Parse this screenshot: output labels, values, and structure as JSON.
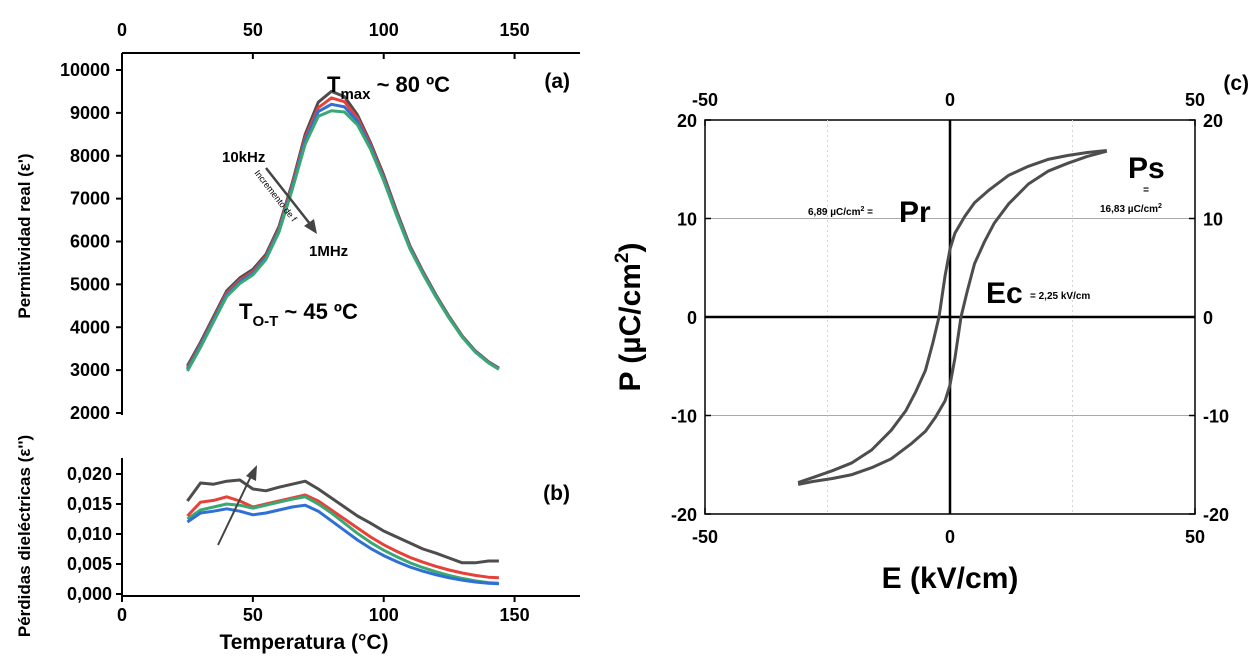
{
  "colors": {
    "dark": "#4d4d4d",
    "red": "#e8413a",
    "blue": "#2f6fd6",
    "green": "#3aa872",
    "gray": "#7a7a7a"
  },
  "chart_data": [
    {
      "id": "a",
      "type": "line",
      "panel_label": "(a)",
      "ylabel": "Permitividad real (ε')",
      "xlim": [
        0,
        175
      ],
      "ylim": [
        2000,
        10000
      ],
      "xticks": [
        "0",
        "50",
        "100",
        "150"
      ],
      "xtick_values": [
        0,
        50,
        100,
        150
      ],
      "yticks": [
        "2000",
        "3000",
        "4000",
        "5000",
        "6000",
        "7000",
        "8000",
        "9000",
        "10000"
      ],
      "ytick_values": [
        2000,
        3000,
        4000,
        5000,
        6000,
        7000,
        8000,
        9000,
        10000
      ],
      "x": [
        25,
        30,
        35,
        40,
        45,
        50,
        55,
        60,
        65,
        70,
        75,
        80,
        85,
        90,
        95,
        100,
        105,
        110,
        115,
        120,
        125,
        130,
        135,
        140,
        144
      ],
      "series": [
        {
          "color": "dark",
          "values": [
            3100,
            3650,
            4250,
            4850,
            5150,
            5350,
            5700,
            6350,
            7350,
            8500,
            9250,
            9500,
            9380,
            8950,
            8300,
            7550,
            6700,
            5900,
            5300,
            4750,
            4250,
            3800,
            3450,
            3200,
            3050
          ]
        },
        {
          "color": "red",
          "values": [
            3050,
            3600,
            4200,
            4800,
            5100,
            5300,
            5650,
            6300,
            7300,
            8420,
            9120,
            9350,
            9260,
            8880,
            8250,
            7500,
            6660,
            5870,
            5280,
            4730,
            4230,
            3790,
            3440,
            3190,
            3040
          ]
        },
        {
          "color": "blue",
          "values": [
            3020,
            3570,
            4170,
            4760,
            5060,
            5260,
            5620,
            6260,
            7250,
            8350,
            9030,
            9200,
            9140,
            8800,
            8200,
            7460,
            6630,
            5850,
            5260,
            4720,
            4220,
            3780,
            3430,
            3180,
            3030
          ]
        },
        {
          "color": "green",
          "values": [
            2980,
            3530,
            4130,
            4720,
            5020,
            5220,
            5580,
            6220,
            7200,
            8270,
            8920,
            9050,
            9020,
            8720,
            8150,
            7420,
            6600,
            5830,
            5240,
            4700,
            4210,
            3770,
            3420,
            3170,
            3020
          ]
        }
      ],
      "annotations": {
        "tmax_prefix": "T",
        "tmax_sub": "max",
        "tmax_suffix": " ~ 80 ºC",
        "tot_prefix": "T",
        "tot_sub": "O-T",
        "tot_suffix": " ~ 45 ºC",
        "freq_low": "10kHz",
        "freq_high": "1MHz",
        "arrow_text": "Incremento de f"
      }
    },
    {
      "id": "b",
      "type": "line",
      "panel_label": "(b)",
      "xlabel": "Temperatura (°C)",
      "ylabel": "Pérdidas dieléctricas (ε'')",
      "xlim": [
        0,
        175
      ],
      "ylim": [
        0,
        0.023
      ],
      "xticks": [
        "0",
        "50",
        "100",
        "150"
      ],
      "xtick_values": [
        0,
        50,
        100,
        150
      ],
      "yticks": [
        "0,000",
        "0,005",
        "0,010",
        "0,015",
        "0,020"
      ],
      "ytick_values": [
        0,
        0.005,
        0.01,
        0.015,
        0.02
      ],
      "x": [
        25,
        30,
        35,
        40,
        45,
        50,
        55,
        60,
        65,
        70,
        75,
        80,
        85,
        90,
        95,
        100,
        105,
        110,
        115,
        120,
        125,
        130,
        135,
        140,
        144
      ],
      "series": [
        {
          "color": "dark",
          "values": [
            0.0155,
            0.0185,
            0.0183,
            0.0188,
            0.019,
            0.0175,
            0.0172,
            0.0178,
            0.0183,
            0.0188,
            0.0175,
            0.016,
            0.0145,
            0.013,
            0.0118,
            0.0105,
            0.0095,
            0.0085,
            0.0075,
            0.0068,
            0.006,
            0.0052,
            0.0052,
            0.0055,
            0.0055
          ]
        },
        {
          "color": "red",
          "values": [
            0.013,
            0.0153,
            0.0156,
            0.0162,
            0.0155,
            0.0145,
            0.015,
            0.0155,
            0.016,
            0.0165,
            0.0155,
            0.014,
            0.0125,
            0.011,
            0.0095,
            0.0082,
            0.0071,
            0.0061,
            0.0053,
            0.0046,
            0.004,
            0.0035,
            0.0031,
            0.0028,
            0.0027
          ]
        },
        {
          "color": "green",
          "values": [
            0.0125,
            0.014,
            0.0145,
            0.015,
            0.0148,
            0.0143,
            0.0148,
            0.0153,
            0.0158,
            0.0162,
            0.015,
            0.0135,
            0.0118,
            0.0101,
            0.0086,
            0.0073,
            0.0062,
            0.0052,
            0.0044,
            0.0037,
            0.0031,
            0.0026,
            0.0022,
            0.0019,
            0.0018
          ]
        },
        {
          "color": "blue",
          "values": [
            0.012,
            0.0135,
            0.0138,
            0.0142,
            0.0138,
            0.0132,
            0.0135,
            0.014,
            0.0145,
            0.0148,
            0.0138,
            0.0122,
            0.0106,
            0.009,
            0.0076,
            0.0064,
            0.0054,
            0.0045,
            0.0038,
            0.0032,
            0.0027,
            0.0023,
            0.002,
            0.0018,
            0.0017
          ]
        }
      ]
    },
    {
      "id": "c",
      "type": "line",
      "panel_label": "(c)",
      "xlabel": "E (kV/cm)",
      "ylabel": "P (µC/cm",
      "ylabel_sup": "2",
      "ylabel_tail": ")",
      "xlim": [
        -50,
        50
      ],
      "ylim": [
        -20,
        20
      ],
      "xticks": [
        "-50",
        "0",
        "50"
      ],
      "xtick_values": [
        -50,
        0,
        50
      ],
      "yticks": [
        "-20",
        "-10",
        "0",
        "10",
        "20"
      ],
      "ytick_values": [
        -20,
        -10,
        0,
        10,
        20
      ],
      "upper_branch": {
        "x": [
          -31,
          -28,
          -24,
          -20,
          -16,
          -12,
          -9,
          -7,
          -5,
          -3.5,
          -2.25,
          -1,
          0,
          1,
          3,
          5,
          8,
          12,
          16,
          20,
          24,
          28,
          32
        ],
        "y": [
          -16.8,
          -16.3,
          -15.6,
          -14.8,
          -13.5,
          -11.5,
          -9.5,
          -7.6,
          -5.4,
          -2.6,
          0,
          4.2,
          6.89,
          8.5,
          10.2,
          11.6,
          12.9,
          14.4,
          15.3,
          16.0,
          16.4,
          16.7,
          16.9
        ]
      },
      "lower_branch": {
        "x": [
          32,
          28,
          24,
          20,
          16,
          12,
          9,
          7,
          5,
          3.5,
          2.25,
          1,
          0,
          -1,
          -3,
          -5,
          -8,
          -12,
          -16,
          -20,
          -24,
          -28,
          -31
        ],
        "y": [
          16.83,
          16.3,
          15.6,
          14.8,
          13.5,
          11.5,
          9.5,
          7.6,
          5.4,
          2.6,
          0,
          -4.2,
          -6.89,
          -8.5,
          -10.2,
          -11.6,
          -12.9,
          -14.4,
          -15.3,
          -16.0,
          -16.4,
          -16.7,
          -17.0
        ]
      },
      "annotations": {
        "pr_value": "6,89 µC/cm",
        "pr_sup": "2",
        "pr_eq": " =",
        "pr_label": "Pr",
        "ps_label": "Ps",
        "ps_eq": "=",
        "ps_value": "16,83 µC/cm",
        "ps_sup": "2",
        "ec_label": "Ec",
        "ec_value": " = 2,25 kV/cm"
      }
    }
  ]
}
